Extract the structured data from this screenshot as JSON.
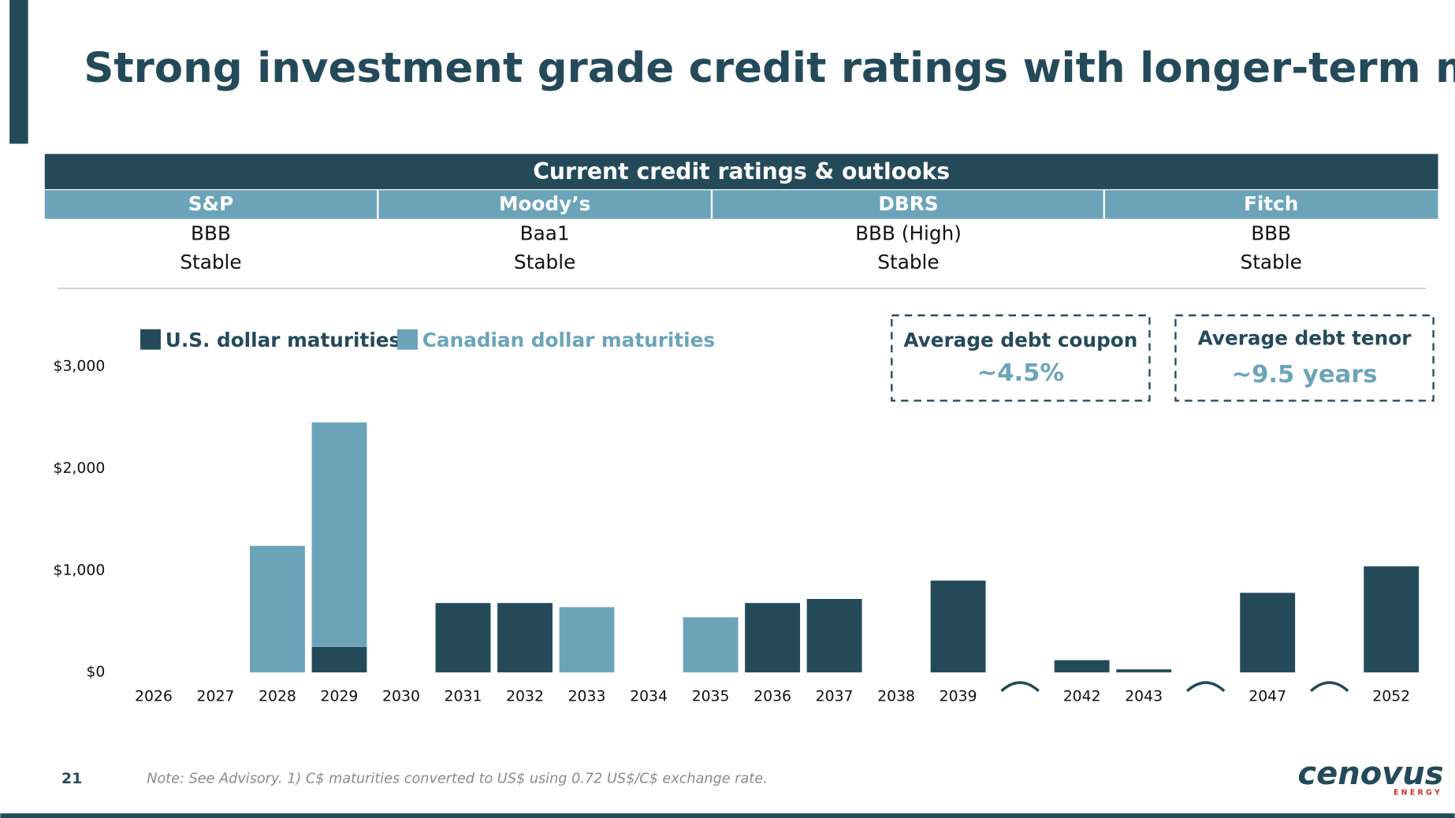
{
  "title": "Strong investment grade credit ratings with longer-term maturities",
  "ratings_table": {
    "title": "Current credit ratings & outlooks",
    "columns": [
      {
        "agency": "S&P",
        "rating": "BBB",
        "outlook": "Stable"
      },
      {
        "agency": "Moody’s",
        "rating": "Baa1",
        "outlook": "Stable"
      },
      {
        "agency": "DBRS",
        "rating": "BBB (High)",
        "outlook": "Stable"
      },
      {
        "agency": "Fitch",
        "rating": "BBB",
        "outlook": "Stable"
      }
    ]
  },
  "callouts": [
    {
      "label": "Average debt coupon",
      "value": "~4.5%"
    },
    {
      "label": "Average debt tenor",
      "value": "~9.5 years"
    }
  ],
  "chart_data": {
    "type": "stacked_bar",
    "categories": [
      "2026",
      "2027",
      "2028",
      "2029",
      "2030",
      "2031",
      "2032",
      "2033",
      "2034",
      "2035",
      "2036",
      "2037",
      "2038",
      "2039",
      null,
      "2042",
      "2043",
      null,
      "2047",
      null,
      "2052"
    ],
    "series": [
      {
        "name": "U.S. dollar maturities",
        "color": "#244a5a",
        "values": [
          0,
          0,
          0,
          250,
          0,
          680,
          680,
          0,
          0,
          0,
          680,
          720,
          0,
          900,
          null,
          120,
          30,
          null,
          780,
          null,
          1040
        ]
      },
      {
        "name": "Canadian dollar maturities",
        "color": "#6ba4b9",
        "values": [
          0,
          0,
          1240,
          2200,
          0,
          0,
          0,
          640,
          0,
          540,
          0,
          0,
          0,
          0,
          null,
          0,
          0,
          null,
          0,
          null,
          0
        ]
      }
    ],
    "ylim": [
      0,
      3000
    ],
    "yticks": [
      {
        "value": 0,
        "label": "$0"
      },
      {
        "value": 1000,
        "label": "$1,000"
      },
      {
        "value": 2000,
        "label": "$2,000"
      },
      {
        "value": 3000,
        "label": "$3,000"
      }
    ],
    "grid": false
  },
  "footer": {
    "page": "21",
    "note": "Note: See Advisory. 1) C$ maturities converted to US$ using 0.72 US$/C$ exchange rate.",
    "logo": "cenovus",
    "logo_sub": "E N E R G Y"
  }
}
